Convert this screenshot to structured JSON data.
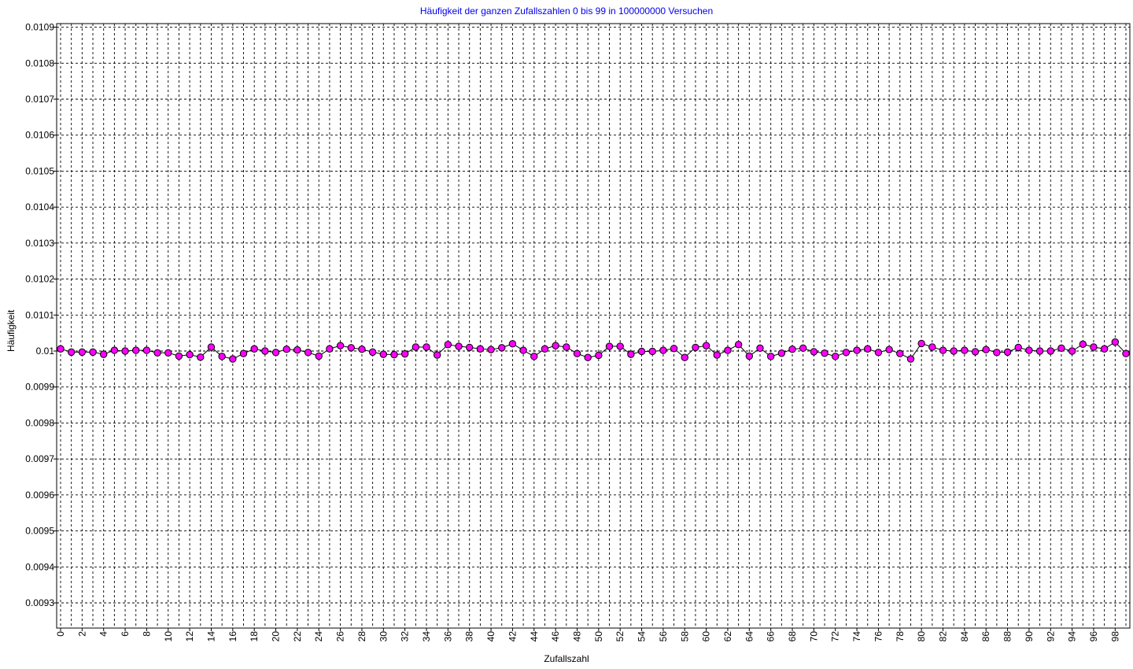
{
  "chart_data": {
    "type": "line",
    "title": "Häufigkeit der ganzen Zufallszahlen 0 bis 99 in 100000000 Versuchen",
    "xlabel": "Zufallszahl",
    "ylabel": "Häufigkeit",
    "ylim": [
      0.00923,
      0.01091
    ],
    "xlim": [
      0,
      99
    ],
    "y_ticks": [
      "0.0093",
      "0.0094",
      "0.0095",
      "0.0096",
      "0.0097",
      "0.0098",
      "0.0099",
      "0.01",
      "0.0101",
      "0.0102",
      "0.0103",
      "0.0104",
      "0.0105",
      "0.0106",
      "0.0107",
      "0.0108",
      "0.0109"
    ],
    "x_ticks": [
      0,
      2,
      4,
      6,
      8,
      10,
      12,
      14,
      16,
      18,
      20,
      22,
      24,
      26,
      28,
      30,
      32,
      34,
      36,
      38,
      40,
      42,
      44,
      46,
      48,
      50,
      52,
      54,
      56,
      58,
      60,
      62,
      64,
      66,
      68,
      70,
      72,
      74,
      76,
      78,
      80,
      82,
      84,
      86,
      88,
      90,
      92,
      94,
      96,
      98
    ],
    "grid": true,
    "marker_color": "#ff00ff",
    "line_color": "#000000",
    "title_color": "#0000ee",
    "x": [
      0,
      1,
      2,
      3,
      4,
      5,
      6,
      7,
      8,
      9,
      10,
      11,
      12,
      13,
      14,
      15,
      16,
      17,
      18,
      19,
      20,
      21,
      22,
      23,
      24,
      25,
      26,
      27,
      28,
      29,
      30,
      31,
      32,
      33,
      34,
      35,
      36,
      37,
      38,
      39,
      40,
      41,
      42,
      43,
      44,
      45,
      46,
      47,
      48,
      49,
      50,
      51,
      52,
      53,
      54,
      55,
      56,
      57,
      58,
      59,
      60,
      61,
      62,
      63,
      64,
      65,
      66,
      67,
      68,
      69,
      70,
      71,
      72,
      73,
      74,
      75,
      76,
      77,
      78,
      79,
      80,
      81,
      82,
      83,
      84,
      85,
      86,
      87,
      88,
      89,
      90,
      91,
      92,
      93,
      94,
      95,
      96,
      97,
      98,
      99
    ],
    "series": [
      {
        "values": [
          0.010006,
          0.009997,
          0.009997,
          0.009997,
          0.009991,
          0.010002,
          0.01,
          0.010002,
          0.010002,
          0.009995,
          0.009995,
          0.009986,
          0.00999,
          0.009983,
          0.010011,
          0.009985,
          0.009978,
          0.009993,
          0.010006,
          0.01,
          0.009996,
          0.010005,
          0.010003,
          0.009996,
          0.009986,
          0.010006,
          0.010015,
          0.010009,
          0.010005,
          0.009997,
          0.009991,
          0.00999,
          0.009992,
          0.010011,
          0.010011,
          0.009989,
          0.010018,
          0.010013,
          0.01001,
          0.010006,
          0.010004,
          0.010009,
          0.01002,
          0.010002,
          0.009985,
          0.010006,
          0.010015,
          0.010011,
          0.009993,
          0.009982,
          0.009988,
          0.010013,
          0.010013,
          0.009991,
          0.009999,
          0.009999,
          0.010002,
          0.010007,
          0.009982,
          0.01001,
          0.010015,
          0.009989,
          0.010002,
          0.010018,
          0.009986,
          0.010008,
          0.009985,
          0.009994,
          0.010005,
          0.010008,
          0.009998,
          0.009994,
          0.009985,
          0.009996,
          0.010002,
          0.010006,
          0.009996,
          0.010004,
          0.009993,
          0.009978,
          0.010021,
          0.010011,
          0.010002,
          0.01,
          0.010002,
          0.009998,
          0.010004,
          0.009996,
          0.009997,
          0.01001,
          0.010002,
          0.01,
          0.01,
          0.010008,
          0.01,
          0.010019,
          0.010011,
          0.010006,
          0.010025,
          0.009993
        ]
      }
    ]
  }
}
